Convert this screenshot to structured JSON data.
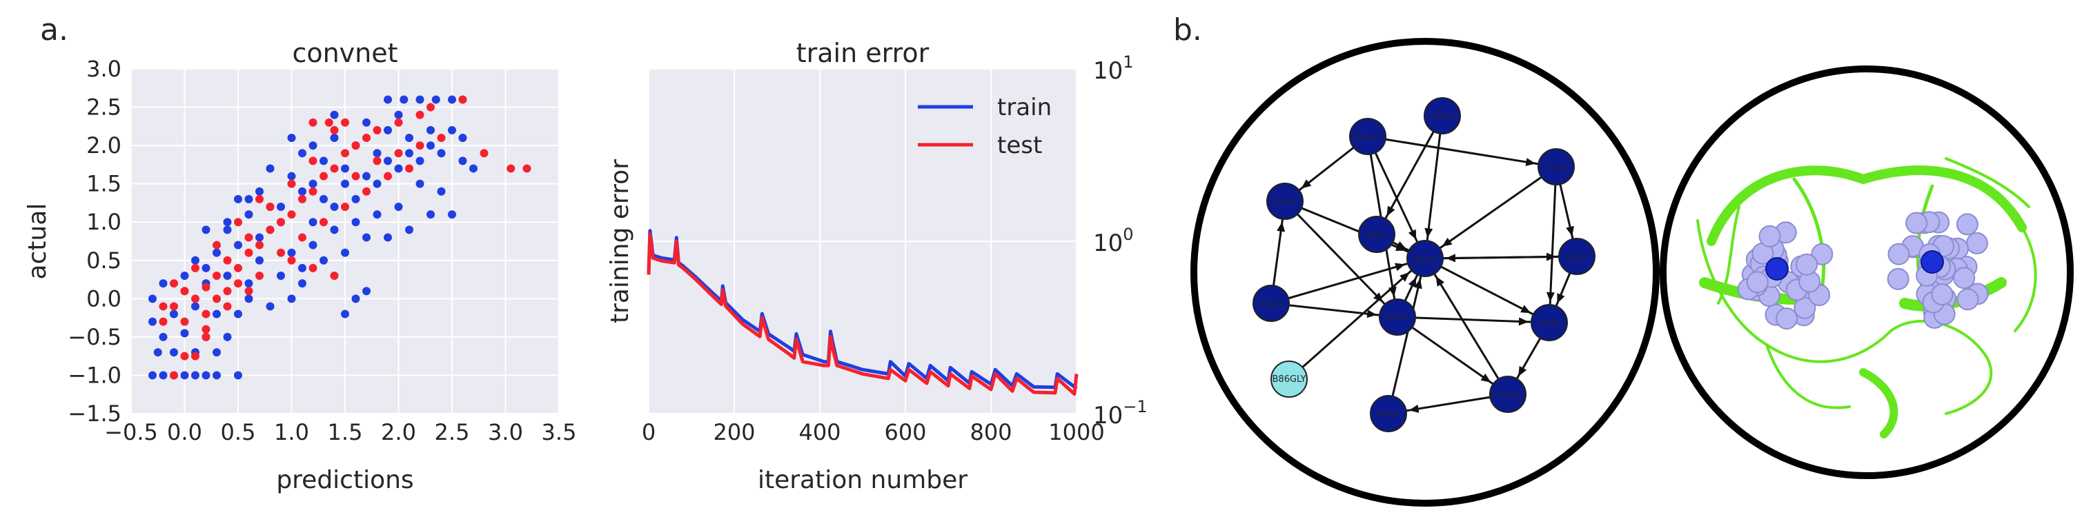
{
  "panel_labels": {
    "a": "a.",
    "b": "b."
  },
  "colors": {
    "train": "#1f3fe0",
    "test": "#f5222d",
    "plot_bg": "#eaeaf2",
    "node_dark": "#0b1a8c",
    "node_light": "#8fe3e6",
    "protein": "#66e61e",
    "atoms": "#b6b6f2"
  },
  "chart_data": [
    {
      "type": "scatter",
      "title": "convnet",
      "xlabel": "predictions",
      "ylabel": "actual",
      "xlim": [
        -0.5,
        3.5
      ],
      "ylim": [
        -1.5,
        3.0
      ],
      "xticks": [
        "−0.5",
        "0.0",
        "0.5",
        "1.0",
        "1.5",
        "2.0",
        "2.5",
        "3.0",
        "3.5"
      ],
      "yticks": [
        "−1.5",
        "−1.0",
        "−0.5",
        "0.0",
        "0.5",
        "1.0",
        "1.5",
        "2.0",
        "2.5",
        "3.0"
      ],
      "grid": true,
      "series": [
        {
          "name": "",
          "color": "#1f3fe0",
          "points": [
            [
              -0.3,
              -1.0
            ],
            [
              -0.2,
              -1.0
            ],
            [
              -0.1,
              -1.0
            ],
            [
              0.0,
              -1.0
            ],
            [
              0.1,
              -1.0
            ],
            [
              0.2,
              -1.0
            ],
            [
              0.3,
              -1.0
            ],
            [
              0.5,
              -1.0
            ],
            [
              -0.25,
              -0.7
            ],
            [
              -0.1,
              -0.7
            ],
            [
              0.1,
              -0.7
            ],
            [
              0.3,
              -0.7
            ],
            [
              -0.2,
              -0.5
            ],
            [
              0.0,
              -0.45
            ],
            [
              0.2,
              -0.5
            ],
            [
              0.4,
              -0.5
            ],
            [
              -0.3,
              -0.3
            ],
            [
              -0.1,
              -0.2
            ],
            [
              0.1,
              -0.1
            ],
            [
              0.3,
              -0.2
            ],
            [
              0.5,
              -0.2
            ],
            [
              0.0,
              0.1
            ],
            [
              0.2,
              0.2
            ],
            [
              0.4,
              0.3
            ],
            [
              0.6,
              0.2
            ],
            [
              0.1,
              0.5
            ],
            [
              0.3,
              0.6
            ],
            [
              0.5,
              0.7
            ],
            [
              0.7,
              0.5
            ],
            [
              0.2,
              0.9
            ],
            [
              0.4,
              1.0
            ],
            [
              0.6,
              1.1
            ],
            [
              0.8,
              0.9
            ],
            [
              0.5,
              1.3
            ],
            [
              0.7,
              1.4
            ],
            [
              0.9,
              1.2
            ],
            [
              1.0,
              1.6
            ],
            [
              0.8,
              1.7
            ],
            [
              1.2,
              1.5
            ],
            [
              1.1,
              1.9
            ],
            [
              1.3,
              1.8
            ],
            [
              1.5,
              1.7
            ],
            [
              1.4,
              2.1
            ],
            [
              1.6,
              2.0
            ],
            [
              1.8,
              1.9
            ],
            [
              1.7,
              2.3
            ],
            [
              1.9,
              2.2
            ],
            [
              2.1,
              2.1
            ],
            [
              2.0,
              2.4
            ],
            [
              1.9,
              2.6
            ],
            [
              2.05,
              2.6
            ],
            [
              2.2,
              2.6
            ],
            [
              2.35,
              2.6
            ],
            [
              2.5,
              2.6
            ],
            [
              2.6,
              2.6
            ],
            [
              1.2,
              1.0
            ],
            [
              1.4,
              1.2
            ],
            [
              1.6,
              1.3
            ],
            [
              1.8,
              1.5
            ],
            [
              2.0,
              1.7
            ],
            [
              2.2,
              1.8
            ],
            [
              2.4,
              1.9
            ],
            [
              1.0,
              0.6
            ],
            [
              1.2,
              0.7
            ],
            [
              1.4,
              0.9
            ],
            [
              1.6,
              1.0
            ],
            [
              1.8,
              1.1
            ],
            [
              2.0,
              1.2
            ],
            [
              0.9,
              0.3
            ],
            [
              1.1,
              0.4
            ],
            [
              1.3,
              0.5
            ],
            [
              1.5,
              0.6
            ],
            [
              1.7,
              0.8
            ],
            [
              2.2,
              1.5
            ],
            [
              2.4,
              1.4
            ],
            [
              2.5,
              1.1
            ],
            [
              2.3,
              2.0
            ],
            [
              2.5,
              2.2
            ],
            [
              2.6,
              1.8
            ],
            [
              1.6,
              0.0
            ],
            [
              1.7,
              0.1
            ],
            [
              1.5,
              -0.2
            ],
            [
              0.8,
              -0.1
            ],
            [
              1.0,
              0.0
            ],
            [
              1.1,
              0.2
            ],
            [
              0.6,
              0.0
            ],
            [
              0.7,
              0.8
            ],
            [
              0.9,
              1.0
            ],
            [
              1.3,
              1.3
            ],
            [
              1.5,
              1.5
            ],
            [
              1.7,
              1.6
            ],
            [
              1.9,
              1.8
            ],
            [
              2.1,
              1.9
            ],
            [
              2.3,
              2.2
            ],
            [
              1.2,
              2.0
            ],
            [
              1.0,
              2.1
            ],
            [
              1.4,
              2.4
            ],
            [
              2.1,
              0.9
            ],
            [
              2.3,
              1.1
            ],
            [
              1.9,
              0.8
            ],
            [
              0.4,
              0.9
            ],
            [
              0.2,
              0.4
            ],
            [
              -0.2,
              0.2
            ],
            [
              -0.3,
              0.0
            ],
            [
              0.0,
              0.3
            ],
            [
              0.6,
              1.3
            ],
            [
              0.8,
              1.2
            ],
            [
              1.1,
              1.4
            ],
            [
              2.6,
              2.1
            ],
            [
              2.7,
              1.7
            ]
          ]
        },
        {
          "name": "",
          "color": "#f5222d",
          "points": [
            [
              -0.1,
              -1.0
            ],
            [
              0.0,
              -0.75
            ],
            [
              0.1,
              -0.75
            ],
            [
              0.2,
              -0.5
            ],
            [
              -0.2,
              -0.3
            ],
            [
              0.0,
              -0.3
            ],
            [
              0.2,
              -0.2
            ],
            [
              -0.1,
              -0.1
            ],
            [
              0.1,
              0.0
            ],
            [
              0.3,
              0.0
            ],
            [
              0.0,
              0.1
            ],
            [
              0.2,
              0.15
            ],
            [
              0.4,
              0.1
            ],
            [
              0.3,
              0.3
            ],
            [
              0.5,
              0.4
            ],
            [
              0.6,
              0.6
            ],
            [
              0.4,
              0.5
            ],
            [
              0.7,
              0.7
            ],
            [
              0.8,
              0.9
            ],
            [
              0.6,
              0.8
            ],
            [
              0.9,
              1.0
            ],
            [
              1.0,
              1.1
            ],
            [
              0.8,
              1.2
            ],
            [
              1.1,
              1.3
            ],
            [
              1.2,
              1.4
            ],
            [
              1.0,
              1.5
            ],
            [
              1.3,
              1.6
            ],
            [
              1.4,
              1.7
            ],
            [
              1.2,
              1.8
            ],
            [
              1.5,
              1.9
            ],
            [
              1.6,
              2.0
            ],
            [
              1.4,
              2.2
            ],
            [
              1.2,
              2.3
            ],
            [
              1.35,
              2.3
            ],
            [
              1.5,
              2.3
            ],
            [
              1.7,
              2.1
            ],
            [
              1.8,
              2.2
            ],
            [
              2.0,
              2.3
            ],
            [
              2.2,
              2.4
            ],
            [
              2.3,
              2.5
            ],
            [
              2.6,
              2.6
            ],
            [
              2.8,
              1.9
            ],
            [
              3.05,
              1.7
            ],
            [
              3.2,
              1.7
            ],
            [
              0.5,
              1.0
            ],
            [
              0.7,
              1.3
            ],
            [
              0.9,
              0.6
            ],
            [
              1.1,
              0.8
            ],
            [
              1.3,
              1.0
            ],
            [
              1.5,
              1.2
            ],
            [
              1.7,
              1.4
            ],
            [
              1.9,
              1.6
            ],
            [
              2.1,
              1.7
            ],
            [
              0.3,
              0.7
            ],
            [
              0.1,
              0.4
            ],
            [
              -0.1,
              0.2
            ],
            [
              0.5,
              0.2
            ],
            [
              0.7,
              0.3
            ],
            [
              1.0,
              0.5
            ],
            [
              2.4,
              2.1
            ],
            [
              2.0,
              1.9
            ],
            [
              1.8,
              1.8
            ],
            [
              1.6,
              1.6
            ],
            [
              0.2,
              -0.4
            ],
            [
              0.4,
              -0.1
            ],
            [
              -0.2,
              -0.1
            ],
            [
              0.6,
              0.1
            ],
            [
              1.2,
              0.4
            ],
            [
              1.4,
              0.3
            ],
            [
              2.2,
              2.0
            ]
          ]
        }
      ]
    },
    {
      "type": "line",
      "title": "train error",
      "xlabel": "iteration number",
      "ylabel": "training error",
      "xlim": [
        0,
        1000
      ],
      "ylim": [
        0.1,
        10
      ],
      "yscale": "log",
      "yaxis_side": "right",
      "xticks": [
        "0",
        "200",
        "400",
        "600",
        "800",
        "1000"
      ],
      "yticks": [
        {
          "base": "10",
          "exp": "1",
          "value": 10
        },
        {
          "base": "10",
          "exp": "0",
          "value": 1
        },
        {
          "base": "10",
          "exp": "−1",
          "value": 0.1
        }
      ],
      "legend": "top-right",
      "grid": true,
      "series": [
        {
          "name": "train",
          "color": "#1f3fe0",
          "x": [
            0,
            3,
            10,
            30,
            60,
            65,
            70,
            80,
            110,
            150,
            170,
            173,
            180,
            220,
            260,
            265,
            280,
            330,
            340,
            345,
            360,
            410,
            420,
            425,
            430,
            440,
            470,
            500,
            560,
            565,
            600,
            608,
            650,
            658,
            700,
            705,
            750,
            755,
            800,
            810,
            850,
            860,
            900,
            950,
            955,
            1000
          ],
          "y": [
            0.66,
            1.15,
            0.83,
            0.8,
            0.78,
            1.05,
            0.75,
            0.72,
            0.62,
            0.5,
            0.45,
            0.55,
            0.44,
            0.35,
            0.3,
            0.38,
            0.29,
            0.24,
            0.23,
            0.29,
            0.22,
            0.2,
            0.2,
            0.3,
            0.26,
            0.2,
            0.19,
            0.18,
            0.17,
            0.2,
            0.165,
            0.195,
            0.16,
            0.19,
            0.155,
            0.185,
            0.15,
            0.175,
            0.148,
            0.18,
            0.145,
            0.17,
            0.143,
            0.142,
            0.17,
            0.14
          ]
        },
        {
          "name": "test",
          "color": "#f5222d",
          "x": [
            0,
            3,
            10,
            30,
            60,
            65,
            70,
            80,
            110,
            150,
            170,
            173,
            180,
            220,
            260,
            265,
            280,
            330,
            340,
            345,
            360,
            410,
            420,
            425,
            430,
            440,
            470,
            500,
            560,
            565,
            600,
            608,
            650,
            658,
            700,
            705,
            750,
            755,
            800,
            810,
            850,
            860,
            900,
            950,
            955,
            995,
            1000
          ],
          "y": [
            0.64,
            1.1,
            0.8,
            0.77,
            0.75,
            1.0,
            0.73,
            0.7,
            0.6,
            0.48,
            0.43,
            0.52,
            0.42,
            0.33,
            0.28,
            0.36,
            0.27,
            0.22,
            0.21,
            0.27,
            0.2,
            0.19,
            0.19,
            0.28,
            0.24,
            0.19,
            0.18,
            0.17,
            0.16,
            0.18,
            0.155,
            0.18,
            0.15,
            0.175,
            0.145,
            0.17,
            0.14,
            0.165,
            0.138,
            0.17,
            0.135,
            0.16,
            0.133,
            0.132,
            0.16,
            0.13,
            0.17
          ]
        }
      ]
    }
  ],
  "network": {
    "nodes": [
      {
        "label": "B82GLY",
        "shade": "dark"
      },
      {
        "label": "D64ASP",
        "shade": "dark"
      },
      {
        "label": "B126GLU",
        "shade": "dark"
      },
      {
        "label": "B54LEU",
        "shade": "dark"
      },
      {
        "label": "C37LEU",
        "shade": "dark"
      },
      {
        "label": "B30ASP",
        "shade": "dark"
      },
      {
        "label": "B50GLY",
        "shade": "dark"
      },
      {
        "label": "B28ASP",
        "shade": "dark"
      },
      {
        "label": "C47VAL",
        "shade": "dark"
      },
      {
        "label": "D125ARG",
        "shade": "dark"
      },
      {
        "label": "B86GLY",
        "shade": "light"
      },
      {
        "label": "B80VAL",
        "shade": "dark"
      },
      {
        "label": "B89ILE",
        "shade": "dark"
      }
    ]
  }
}
